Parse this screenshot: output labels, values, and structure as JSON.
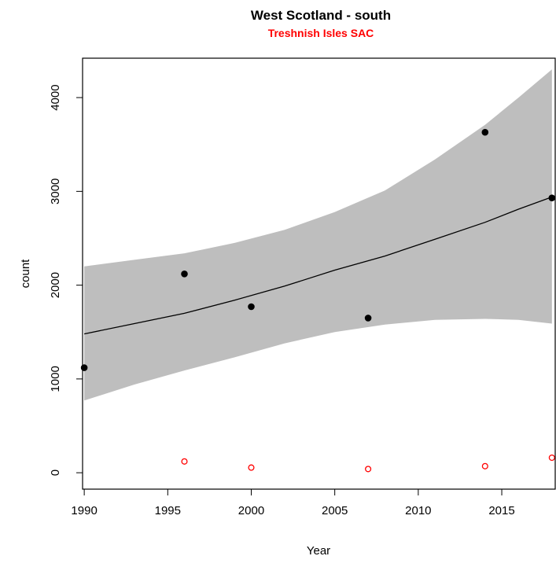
{
  "chart_data": {
    "type": "scatter",
    "title": "West Scotland - south",
    "subtitle": "Treshnish Isles SAC",
    "xlabel": "Year",
    "ylabel": "count",
    "xlim": [
      1989.9,
      2018.2
    ],
    "ylim": [
      -175,
      4420
    ],
    "x_ticks": [
      "1990",
      "1995",
      "2000",
      "2005",
      "2010",
      "2015"
    ],
    "y_ticks": [
      "0",
      "1000",
      "2000",
      "3000",
      "4000"
    ],
    "grid": false,
    "colors": {
      "subtitle": "#ff0000",
      "region_points": "#000000",
      "sac_points": "#ff0000",
      "confidence_band": "#bebebe",
      "fit_line": "#000000"
    },
    "series": [
      {
        "marker": "filled-circle",
        "color": "#000000",
        "x": [
          1990,
          1996,
          2000,
          2007,
          2014,
          2018
        ],
        "y": [
          1120,
          2120,
          1770,
          1650,
          3630,
          2930
        ]
      },
      {
        "marker": "open-circle",
        "color": "#ff0000",
        "x": [
          1996,
          2000,
          2007,
          2014,
          2018
        ],
        "y": [
          120,
          55,
          40,
          70,
          160
        ]
      }
    ],
    "fit_line": {
      "x": [
        1990,
        1993,
        1996,
        1999,
        2002,
        2005,
        2008,
        2011,
        2014,
        2016,
        2018
      ],
      "y": [
        1480,
        1590,
        1700,
        1840,
        1990,
        2160,
        2310,
        2490,
        2670,
        2810,
        2940
      ]
    },
    "confidence_band": {
      "x": [
        1990,
        1993,
        1996,
        1999,
        2002,
        2005,
        2008,
        2011,
        2014,
        2016,
        2018
      ],
      "upper": [
        2200,
        2270,
        2340,
        2450,
        2590,
        2780,
        3010,
        3340,
        3710,
        4000,
        4300
      ],
      "lower": [
        770,
        940,
        1090,
        1230,
        1380,
        1500,
        1580,
        1630,
        1640,
        1630,
        1590
      ]
    }
  }
}
